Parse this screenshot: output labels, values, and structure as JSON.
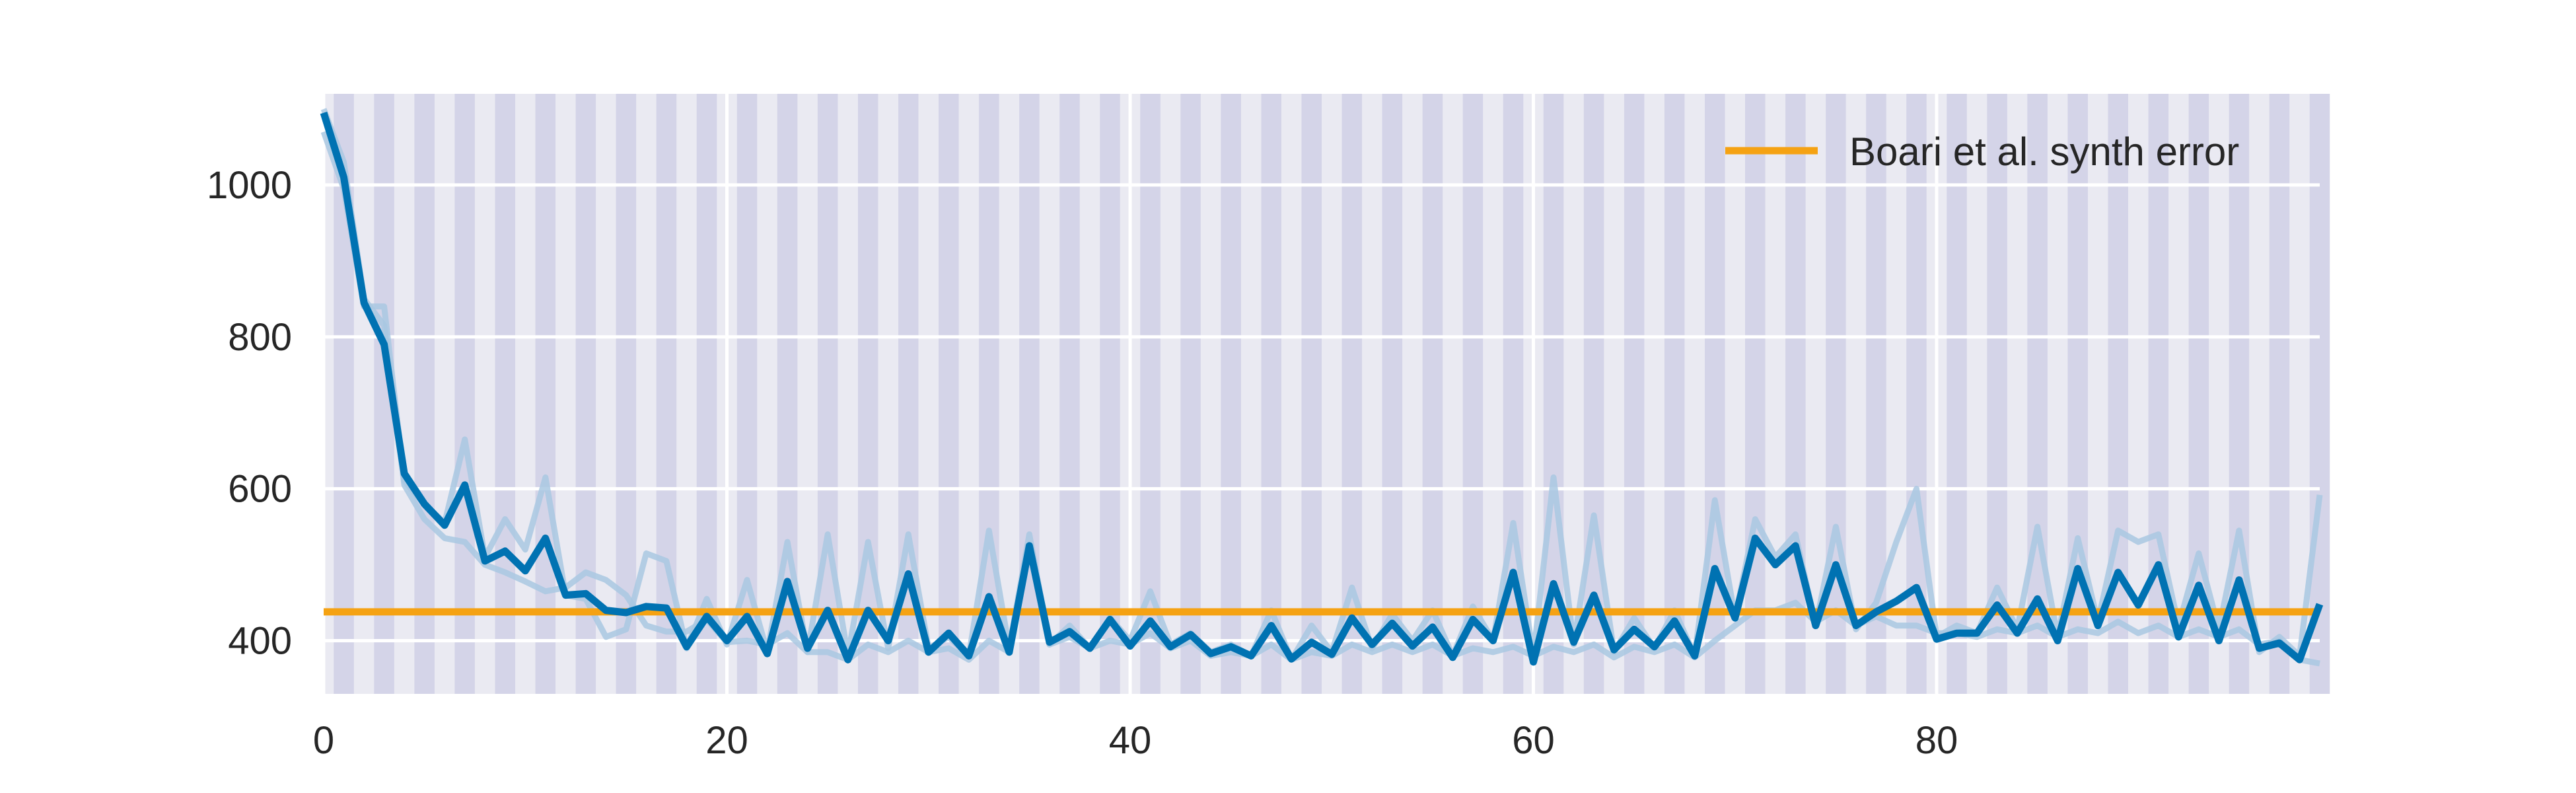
{
  "chart_data": {
    "type": "line",
    "title": "",
    "xlabel": "",
    "ylabel": "",
    "xlim": [
      0,
      99
    ],
    "ylim": [
      330,
      1120
    ],
    "x_ticks": [
      0,
      20,
      40,
      60,
      80
    ],
    "y_ticks": [
      400,
      600,
      800,
      1000
    ],
    "grid": true,
    "legend": {
      "position": "top-right",
      "entries": [
        "Boari et al. synth error"
      ]
    },
    "colors": {
      "background": "#eaeaf2",
      "band": "#d4d4e8",
      "grid": "#ffffff",
      "main_line": "#0072b2",
      "faint_line": "#a9c8e2",
      "reference_line": "#f5a213"
    },
    "reference_line": {
      "name": "Boari et al. synth error",
      "value": 438
    },
    "series": [
      {
        "role": "main",
        "values": [
          1095,
          1010,
          845,
          790,
          620,
          580,
          552,
          605,
          505,
          518,
          492,
          535,
          460,
          462,
          440,
          437,
          445,
          443,
          392,
          432,
          400,
          432,
          383,
          478,
          390,
          440,
          375,
          440,
          400,
          488,
          385,
          410,
          380,
          458,
          385,
          525,
          398,
          412,
          390,
          428,
          393,
          426,
          392,
          408,
          383,
          392,
          380,
          420,
          376,
          398,
          382,
          430,
          395,
          423,
          393,
          418,
          378,
          428,
          400,
          490,
          372,
          475,
          398,
          460,
          388,
          415,
          392,
          426,
          380,
          495,
          430,
          535,
          500,
          525,
          420,
          500,
          420,
          438,
          452,
          470,
          402,
          410,
          410,
          447,
          410,
          455,
          400,
          495,
          420,
          490,
          447,
          500,
          405,
          473,
          400,
          480,
          390,
          397,
          375,
          448
        ]
      },
      {
        "role": "faint",
        "values": [
          1070,
          995,
          840,
          840,
          610,
          580,
          555,
          665,
          510,
          560,
          520,
          615,
          460,
          455,
          405,
          415,
          515,
          505,
          390,
          455,
          395,
          480,
          385,
          530,
          385,
          540,
          380,
          530,
          390,
          540,
          390,
          405,
          380,
          545,
          390,
          540,
          395,
          420,
          390,
          430,
          400,
          465,
          395,
          410,
          385,
          395,
          380,
          440,
          375,
          420,
          385,
          470,
          390,
          435,
          400,
          440,
          380,
          445,
          400,
          555,
          380,
          615,
          395,
          565,
          385,
          430,
          390,
          440,
          380,
          585,
          430,
          560,
          510,
          540,
          420,
          550,
          415,
          450,
          530,
          600,
          405,
          420,
          410,
          470,
          415,
          550,
          405,
          535,
          425,
          545,
          530,
          540,
          420,
          515,
          415,
          545,
          385,
          405,
          380,
          592
        ]
      },
      {
        "role": "faint",
        "values": [
          1100,
          1030,
          850,
          815,
          605,
          560,
          535,
          530,
          500,
          490,
          478,
          465,
          470,
          490,
          480,
          460,
          420,
          412,
          412,
          428,
          398,
          400,
          395,
          410,
          385,
          385,
          375,
          395,
          385,
          400,
          385,
          390,
          375,
          400,
          385,
          520,
          395,
          405,
          390,
          400,
          395,
          410,
          390,
          400,
          380,
          385,
          380,
          395,
          375,
          385,
          380,
          395,
          385,
          395,
          385,
          395,
          380,
          390,
          385,
          392,
          380,
          392,
          385,
          395,
          378,
          392,
          385,
          395,
          378,
          400,
          420,
          440,
          440,
          450,
          425,
          440,
          420,
          432,
          420,
          420,
          410,
          410,
          405,
          415,
          410,
          420,
          405,
          415,
          410,
          425,
          410,
          420,
          405,
          415,
          405,
          415,
          395,
          400,
          375,
          370
        ]
      }
    ]
  }
}
